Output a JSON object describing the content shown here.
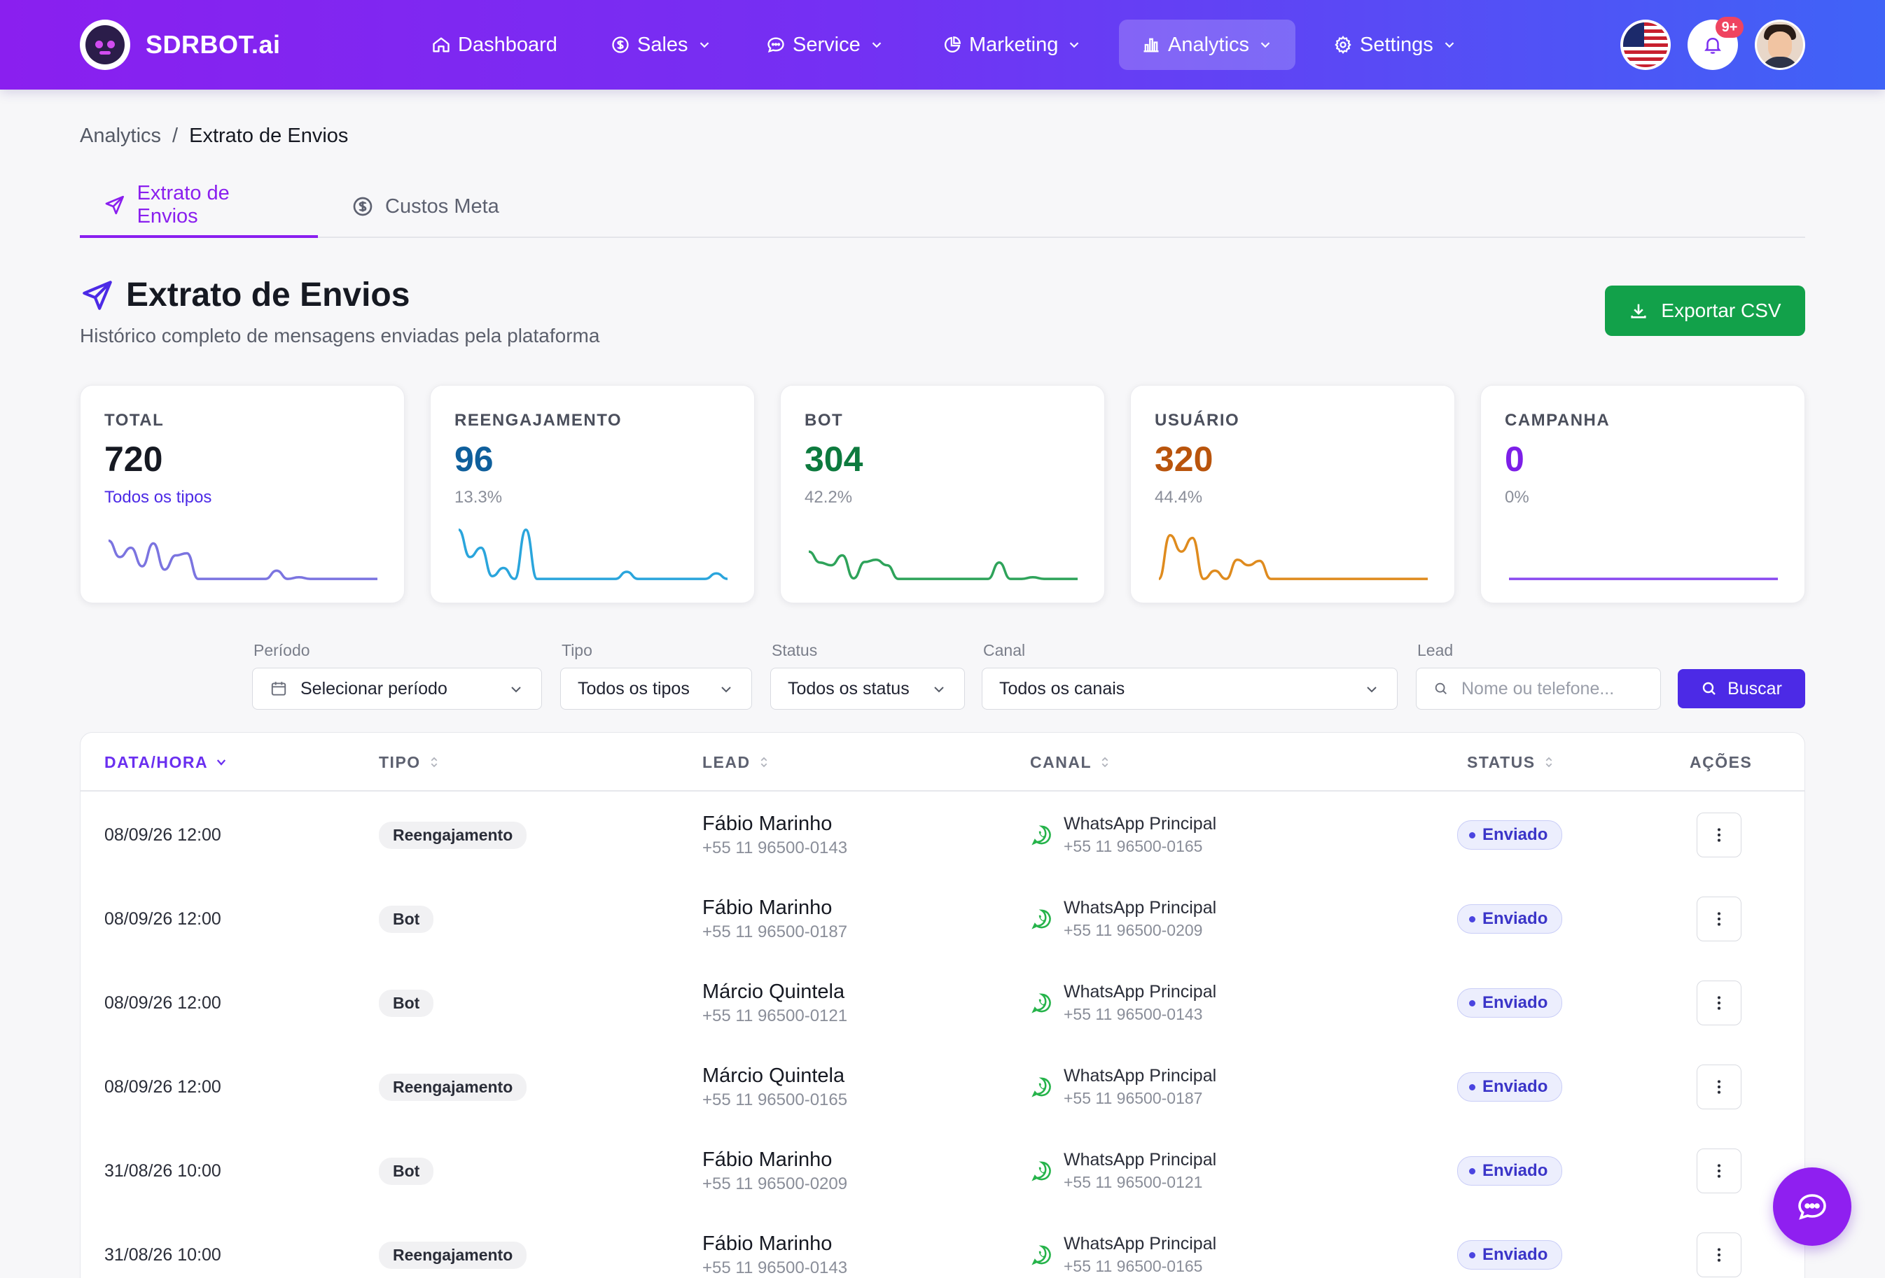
{
  "app": {
    "brand": "SDRBOT.ai"
  },
  "nav": {
    "items": [
      {
        "label": "Dashboard",
        "icon": "home-icon"
      },
      {
        "label": "Sales",
        "icon": "dollar-icon"
      },
      {
        "label": "Service",
        "icon": "chat-icon"
      },
      {
        "label": "Marketing",
        "icon": "pie-icon"
      },
      {
        "label": "Analytics",
        "icon": "bar-chart-icon",
        "active": true
      },
      {
        "label": "Settings",
        "icon": "gear-icon"
      }
    ],
    "notifications_count": "9+"
  },
  "breadcrumb": {
    "parent": "Analytics",
    "separator": "/",
    "current": "Extrato de Envios"
  },
  "tabs": [
    {
      "label": "Extrato de Envios",
      "icon": "send-icon",
      "active": true
    },
    {
      "label": "Custos Meta",
      "icon": "dollar-icon",
      "active": false
    }
  ],
  "header": {
    "title": "Extrato de Envios",
    "subtitle": "Histórico completo de mensagens enviadas pela plataforma",
    "export_label": "Exportar CSV"
  },
  "stats": [
    {
      "label": "TOTAL",
      "value": "720",
      "sub": "Todos os tipos",
      "color": "#161922",
      "sub_color": "#4c2ae6",
      "spark_color": "#7b74e0",
      "trend": [
        0.75,
        0.45,
        0.62,
        0.28,
        0.7,
        0.22,
        0.48,
        0.52,
        0.05,
        0.05,
        0.05,
        0.05,
        0.05,
        0.05,
        0.05,
        0.2,
        0.05,
        0.08,
        0.05,
        0.05,
        0.05,
        0.05,
        0.05,
        0.05,
        0.05
      ]
    },
    {
      "label": "REENGAJAMENTO",
      "value": "96",
      "sub": "13.3%",
      "color": "#0f5f9c",
      "sub_color": "#8a8e99",
      "spark_color": "#2aa5dc",
      "trend": [
        0.95,
        0.45,
        0.62,
        0.1,
        0.25,
        0.05,
        0.95,
        0.05,
        0.05,
        0.05,
        0.05,
        0.05,
        0.05,
        0.05,
        0.05,
        0.18,
        0.05,
        0.05,
        0.05,
        0.05,
        0.05,
        0.05,
        0.05,
        0.15,
        0.05
      ]
    },
    {
      "label": "BOT",
      "value": "304",
      "sub": "42.2%",
      "color": "#0d7a3e",
      "sub_color": "#8a8e99",
      "spark_color": "#2ea35a",
      "trend": [
        0.55,
        0.35,
        0.3,
        0.48,
        0.06,
        0.36,
        0.4,
        0.3,
        0.05,
        0.05,
        0.05,
        0.05,
        0.05,
        0.05,
        0.05,
        0.05,
        0.05,
        0.35,
        0.05,
        0.05,
        0.08,
        0.05,
        0.05,
        0.05,
        0.05
      ]
    },
    {
      "label": "USUÁRIO",
      "value": "320",
      "sub": "44.4%",
      "color": "#b9540c",
      "sub_color": "#8a8e99",
      "spark_color": "#df8b1e",
      "trend": [
        0.05,
        0.85,
        0.55,
        0.8,
        0.05,
        0.2,
        0.05,
        0.4,
        0.3,
        0.38,
        0.05,
        0.05,
        0.05,
        0.05,
        0.05,
        0.05,
        0.05,
        0.05,
        0.05,
        0.05,
        0.05,
        0.05,
        0.05,
        0.05,
        0.05
      ]
    },
    {
      "label": "CAMPANHA",
      "value": "0",
      "sub": "0%",
      "color": "#7d1fe8",
      "sub_color": "#8a8e99",
      "spark_color": "#8a4af0",
      "trend": [
        0.05,
        0.05,
        0.05,
        0.05,
        0.05,
        0.05,
        0.05,
        0.05,
        0.05,
        0.05,
        0.05,
        0.05,
        0.05,
        0.05,
        0.05,
        0.05,
        0.05,
        0.05,
        0.05,
        0.05,
        0.05,
        0.05,
        0.05,
        0.05,
        0.05
      ]
    }
  ],
  "filters": {
    "periodo": {
      "label": "Período",
      "value": "Selecionar período"
    },
    "tipo": {
      "label": "Tipo",
      "value": "Todos os tipos"
    },
    "status": {
      "label": "Status",
      "value": "Todos os status"
    },
    "canal": {
      "label": "Canal",
      "value": "Todos os canais"
    },
    "lead": {
      "label": "Lead",
      "placeholder": "Nome ou telefone..."
    },
    "search_label": "Buscar"
  },
  "table": {
    "columns": [
      "DATA/HORA",
      "TIPO",
      "LEAD",
      "CANAL",
      "STATUS",
      "AÇÕES"
    ],
    "rows": [
      {
        "date": "08/09/26 12:00",
        "tipo": "Reengajamento",
        "lead_name": "Fábio Marinho",
        "lead_phone": "+55 11 96500-0143",
        "canal": "WhatsApp Principal",
        "canal_phone": "+55 11 96500-0165",
        "status": "Enviado"
      },
      {
        "date": "08/09/26 12:00",
        "tipo": "Bot",
        "lead_name": "Fábio Marinho",
        "lead_phone": "+55 11 96500-0187",
        "canal": "WhatsApp Principal",
        "canal_phone": "+55 11 96500-0209",
        "status": "Enviado"
      },
      {
        "date": "08/09/26 12:00",
        "tipo": "Bot",
        "lead_name": "Márcio Quintela",
        "lead_phone": "+55 11 96500-0121",
        "canal": "WhatsApp Principal",
        "canal_phone": "+55 11 96500-0143",
        "status": "Enviado"
      },
      {
        "date": "08/09/26 12:00",
        "tipo": "Reengajamento",
        "lead_name": "Márcio Quintela",
        "lead_phone": "+55 11 96500-0165",
        "canal": "WhatsApp Principal",
        "canal_phone": "+55 11 96500-0187",
        "status": "Enviado"
      },
      {
        "date": "31/08/26 10:00",
        "tipo": "Bot",
        "lead_name": "Fábio Marinho",
        "lead_phone": "+55 11 96500-0209",
        "canal": "WhatsApp Principal",
        "canal_phone": "+55 11 96500-0121",
        "status": "Enviado"
      },
      {
        "date": "31/08/26 10:00",
        "tipo": "Reengajamento",
        "lead_name": "Fábio Marinho",
        "lead_phone": "+55 11 96500-0143",
        "canal": "WhatsApp Principal",
        "canal_phone": "+55 11 96500-0165",
        "status": "Enviado"
      }
    ]
  },
  "colors": {
    "accent": "#8a1fef",
    "primary_button": "#4c2ae6",
    "export_button": "#12a14a",
    "whatsapp": "#25b34a"
  }
}
